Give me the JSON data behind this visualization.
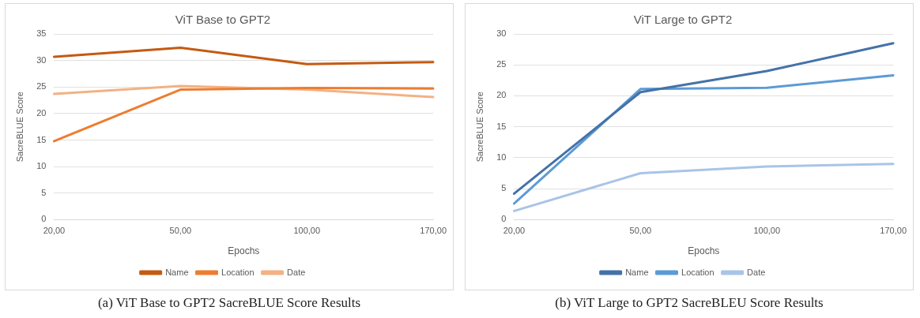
{
  "chart_data": [
    {
      "type": "line",
      "title": "ViT Base to GPT2",
      "xlabel": "Epochs",
      "ylabel": "SacreBLUE Score",
      "categories": [
        "20,00",
        "50,00",
        "100,00",
        "170,00"
      ],
      "ylim": [
        0,
        35
      ],
      "yticks": [
        0,
        5,
        10,
        15,
        20,
        25,
        30,
        35
      ],
      "grid": "y",
      "legend": "bottom",
      "marker": "none",
      "line_style": "solid",
      "annotations": [
        "(a) ViT Base to GPT2 SacreBLUE Score Results"
      ],
      "series": [
        {
          "name": "Name",
          "color": "#c55a11",
          "values": [
            30.7,
            32.4,
            29.3,
            29.7
          ]
        },
        {
          "name": "Location",
          "color": "#ed7d31",
          "values": [
            14.8,
            24.5,
            24.8,
            24.7
          ]
        },
        {
          "name": "Date",
          "color": "#f4b183",
          "values": [
            23.7,
            25.2,
            24.5,
            23.1
          ]
        }
      ]
    },
    {
      "type": "line",
      "title": "ViT Large to GPT2",
      "xlabel": "Epochs",
      "ylabel": "SacreBLUE Score",
      "categories": [
        "20,00",
        "50,00",
        "100,00",
        "170,00"
      ],
      "ylim": [
        0,
        30
      ],
      "yticks": [
        0,
        5,
        10,
        15,
        20,
        25,
        30
      ],
      "grid": "y",
      "legend": "bottom",
      "marker": "none",
      "line_style": "solid",
      "annotations": [
        "(b) ViT Large to GPT2 SacreBLEU Score Results"
      ],
      "series": [
        {
          "name": "Name",
          "color": "#4472a8",
          "values": [
            4.2,
            20.6,
            24.0,
            28.5
          ]
        },
        {
          "name": "Location",
          "color": "#5b9bd5",
          "values": [
            2.6,
            21.1,
            21.3,
            23.3
          ]
        },
        {
          "name": "Date",
          "color": "#a9c4e8",
          "values": [
            1.4,
            7.5,
            8.6,
            9.0
          ]
        }
      ]
    }
  ]
}
